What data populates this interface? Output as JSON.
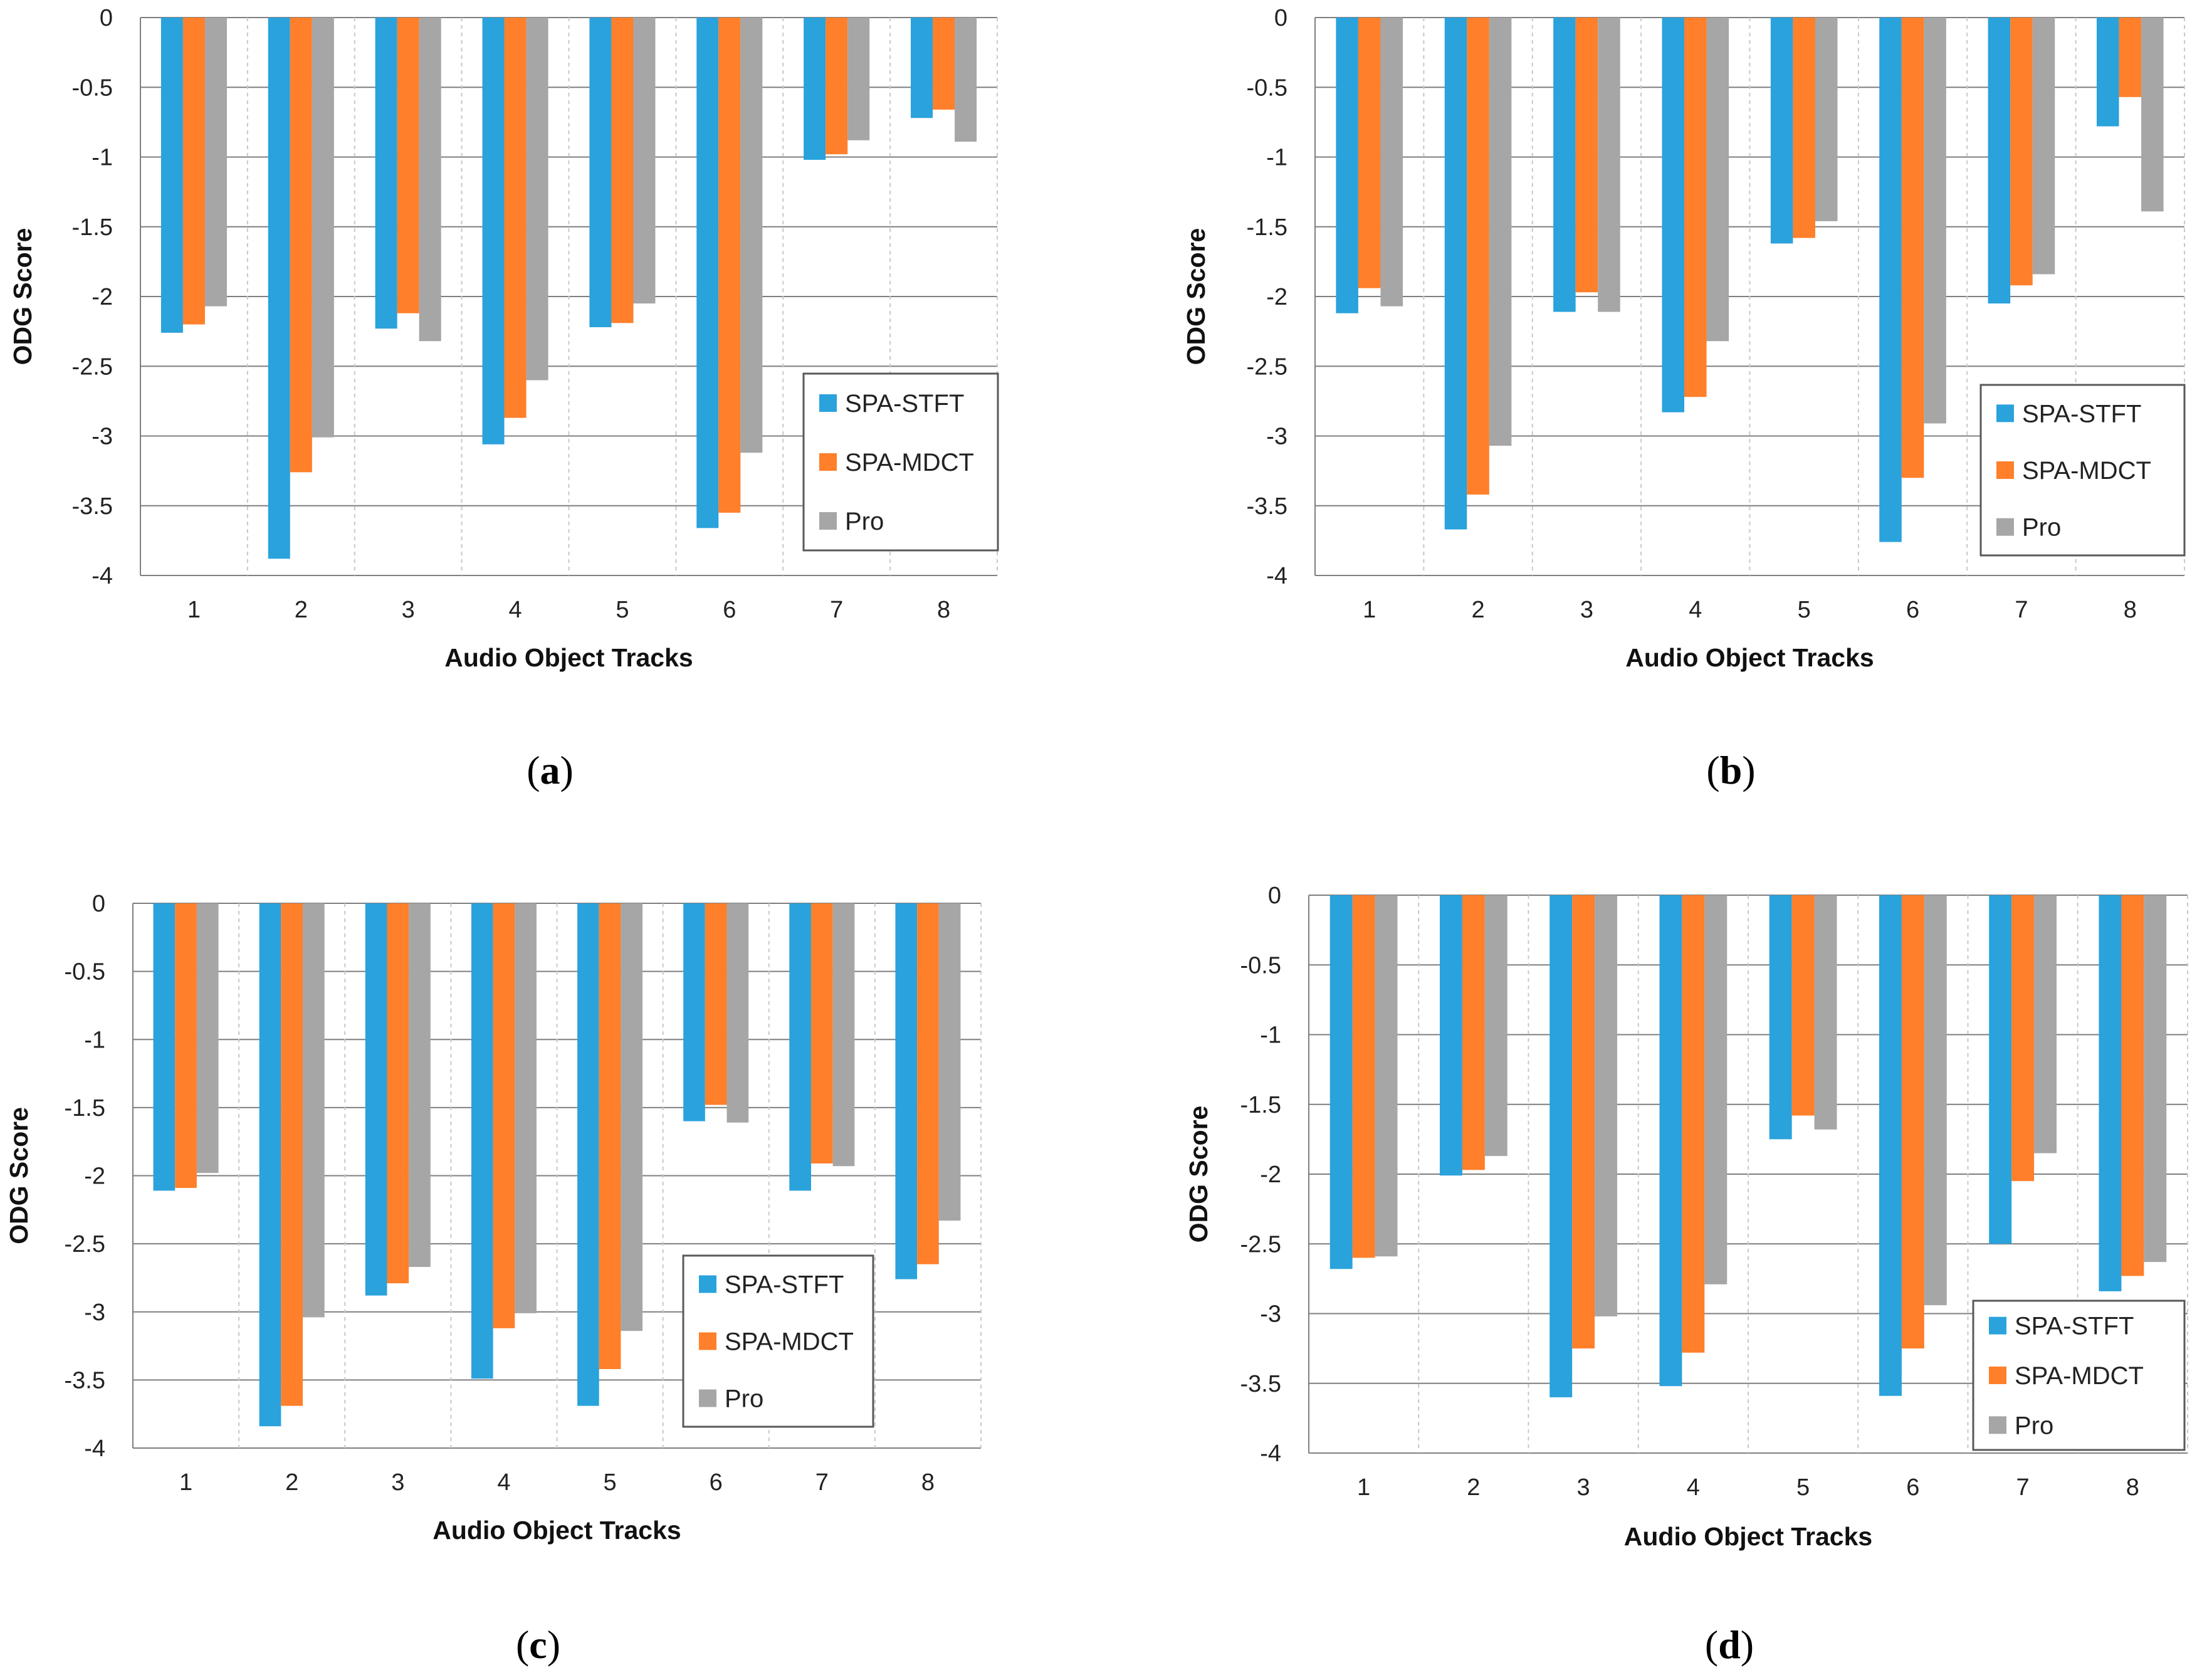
{
  "figure": {
    "colors": {
      "SPA-STFT": "#2AA2DC",
      "SPA-MDCT": "#FF7F2A",
      "Pro": "#A6A6A6",
      "grid": "#7F7F7F",
      "legend_border": "#595959"
    }
  },
  "chart_data": [
    {
      "panel": "a",
      "type": "bar",
      "title": "",
      "xlabel": "Audio Object Tracks",
      "ylabel": "ODG Score",
      "ylim": [
        -4,
        0
      ],
      "yticks": [
        0,
        -0.5,
        -1,
        -1.5,
        -2,
        -2.5,
        -3,
        -3.5,
        -4
      ],
      "ytick_labels": [
        "0",
        "-0.5",
        "-1",
        "-1.5",
        "-2",
        "-2.5",
        "-3",
        "-3.5",
        "-4"
      ],
      "grid": true,
      "legend_position": "right",
      "categories": [
        "1",
        "2",
        "3",
        "4",
        "5",
        "6",
        "7",
        "8"
      ],
      "series": [
        {
          "name": "SPA-STFT",
          "values": [
            -2.26,
            -3.88,
            -2.23,
            -3.06,
            -2.22,
            -3.66,
            -1.02,
            -0.72
          ]
        },
        {
          "name": "SPA-MDCT",
          "values": [
            -2.2,
            -3.26,
            -2.12,
            -2.87,
            -2.19,
            -3.55,
            -0.98,
            -0.66
          ]
        },
        {
          "name": "Pro",
          "values": [
            -2.07,
            -3.01,
            -2.32,
            -2.6,
            -2.05,
            -3.12,
            -0.88,
            -0.89
          ]
        }
      ]
    },
    {
      "panel": "b",
      "type": "bar",
      "title": "",
      "xlabel": "Audio Object Tracks",
      "ylabel": "ODG Score",
      "ylim": [
        -4,
        0
      ],
      "yticks": [
        0,
        -0.5,
        -1,
        -1.5,
        -2,
        -2.5,
        -3,
        -3.5,
        -4
      ],
      "ytick_labels": [
        "0",
        "-0.5",
        "-1",
        "-1.5",
        "-2",
        "-2.5",
        "-3",
        "-3.5",
        "-4"
      ],
      "grid": true,
      "legend_position": "right",
      "categories": [
        "1",
        "2",
        "3",
        "4",
        "5",
        "6",
        "7",
        "8"
      ],
      "series": [
        {
          "name": "SPA-STFT",
          "values": [
            -2.12,
            -3.67,
            -2.11,
            -2.83,
            -1.62,
            -3.76,
            -2.05,
            -0.78
          ]
        },
        {
          "name": "SPA-MDCT",
          "values": [
            -1.94,
            -3.42,
            -1.97,
            -2.72,
            -1.58,
            -3.3,
            -1.92,
            -0.57
          ]
        },
        {
          "name": "Pro",
          "values": [
            -2.07,
            -3.07,
            -2.11,
            -2.32,
            -1.46,
            -2.91,
            -1.84,
            -1.39
          ]
        }
      ]
    },
    {
      "panel": "c",
      "type": "bar",
      "title": "",
      "xlabel": "Audio Object Tracks",
      "ylabel": "ODG Score",
      "ylim": [
        -4,
        0
      ],
      "yticks": [
        0,
        -0.5,
        -1,
        -1.5,
        -2,
        -2.5,
        -3,
        -3.5,
        -4
      ],
      "ytick_labels": [
        "0",
        "-0.5",
        "-1",
        "-1.5",
        "-2",
        "-2.5",
        "-3",
        "-3.5",
        "-4"
      ],
      "grid": true,
      "legend_position": "bottom-right",
      "categories": [
        "1",
        "2",
        "3",
        "4",
        "5",
        "6",
        "7",
        "8"
      ],
      "series": [
        {
          "name": "SPA-STFT",
          "values": [
            -2.11,
            -3.84,
            -2.88,
            -3.49,
            -3.69,
            -1.6,
            -2.11,
            -2.76
          ]
        },
        {
          "name": "SPA-MDCT",
          "values": [
            -2.09,
            -3.69,
            -2.79,
            -3.12,
            -3.42,
            -1.48,
            -1.91,
            -2.65
          ]
        },
        {
          "name": "Pro",
          "values": [
            -1.98,
            -3.04,
            -2.67,
            -3.01,
            -3.14,
            -1.61,
            -1.93,
            -2.33
          ]
        }
      ]
    },
    {
      "panel": "d",
      "type": "bar",
      "title": "",
      "xlabel": "Audio Object Tracks",
      "ylabel": "ODG Score",
      "ylim": [
        -4,
        0
      ],
      "yticks": [
        0,
        -0.5,
        -1,
        -1.5,
        -2,
        -2.5,
        -3,
        -3.5,
        -4
      ],
      "ytick_labels": [
        "0",
        "-0.5",
        "-1",
        "-1.5",
        "-2",
        "-2.5",
        "-3",
        "-3.5",
        "-4"
      ],
      "grid": true,
      "legend_position": "bottom-right",
      "categories": [
        "1",
        "2",
        "3",
        "4",
        "5",
        "6",
        "7",
        "8"
      ],
      "series": [
        {
          "name": "SPA-STFT",
          "values": [
            -2.68,
            -2.01,
            -3.6,
            -3.52,
            -1.75,
            -3.59,
            -2.5,
            -2.84
          ]
        },
        {
          "name": "SPA-MDCT",
          "values": [
            -2.6,
            -1.97,
            -3.25,
            -3.28,
            -1.58,
            -3.25,
            -2.05,
            -2.73
          ]
        },
        {
          "name": "Pro",
          "values": [
            -2.59,
            -1.87,
            -3.02,
            -2.79,
            -1.68,
            -2.94,
            -1.85,
            -2.63
          ]
        }
      ]
    }
  ]
}
